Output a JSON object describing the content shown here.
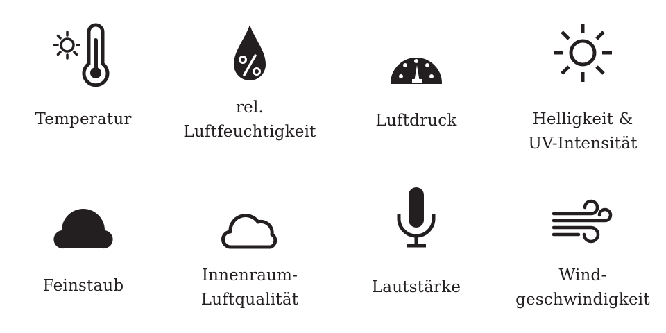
{
  "features": [
    {
      "id": "temperature",
      "icon": "thermometer-sun-icon",
      "lines": [
        "Temperatur"
      ]
    },
    {
      "id": "humidity",
      "icon": "humidity-drop-icon",
      "lines": [
        "rel.",
        "Luftfeuchtigkeit"
      ]
    },
    {
      "id": "pressure",
      "icon": "pressure-gauge-icon",
      "lines": [
        "Luftdruck"
      ]
    },
    {
      "id": "brightness",
      "icon": "sun-icon",
      "lines": [
        "Helligkeit &",
        "UV-Intensität"
      ]
    },
    {
      "id": "particulate",
      "icon": "cloud-filled-icon",
      "lines": [
        "Feinstaub"
      ]
    },
    {
      "id": "indoor-air",
      "icon": "cloud-outline-icon",
      "lines": [
        "Innenraum-",
        "Luftqualität"
      ]
    },
    {
      "id": "loudness",
      "icon": "microphone-icon",
      "lines": [
        "Lautstärke"
      ]
    },
    {
      "id": "wind",
      "icon": "wind-icon",
      "lines": [
        "Wind-",
        "geschwindigkeit"
      ]
    }
  ],
  "colors": {
    "ink": "#231f20",
    "background": "#ffffff"
  }
}
